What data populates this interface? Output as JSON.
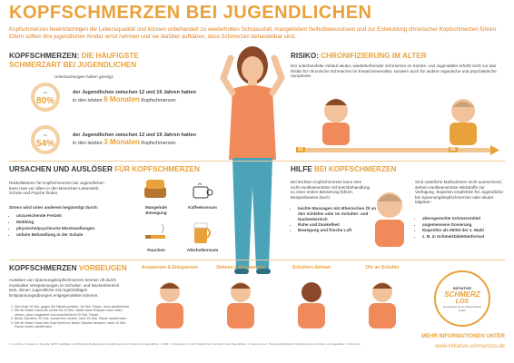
{
  "header": {
    "title": "KOPFSCHMERZEN BEI JUGENDLICHEN",
    "intro": "Kopfschmerzen beeinträchtigen die Lebensqualität und können unbehandelt zu wiederholten Schulausfall, mangelndem Selbstbewusstsein und zur Entwicklung chronischer Kopfschmerzen führen. Eltern sollten ihre jugendlichen Kinder ernst nehmen und sie darüber aufklären, dass Schmerzen behandelbar sind."
  },
  "frequent": {
    "title_a": "KOPFSCHMERZEN: ",
    "title_b": "DIE HÄUFIGSTE SCHMERZART BEI JUGENDLICHEN",
    "note": "Untersuchungen haben gezeigt:",
    "stat1": {
      "pct": "80%",
      "unit": "ca.",
      "text_a": "der Jugendlichen zwischen 12 und 19 Jahren hatten",
      "text_b": "in den letzten",
      "highlight": "6 Monaten",
      "text_c": "Kopfschmerzen"
    },
    "stat2": {
      "pct": "54%",
      "unit": "ca.",
      "text_a": "der Jugendlichen zwischen 12 und 19 Jahren hatten",
      "text_b": "in den letzten",
      "highlight": "3 Monaten",
      "text_c": "Kopfschmerzen"
    }
  },
  "risk": {
    "title_a": "RISIKO: ",
    "title_b": "CHRONIFIZIERUNG IM ALTER",
    "text": "Der unbehandelte Verlauf akuter, wiederkehrender Schmerzen im Kindes- und Jugendalter erhöht nicht nur das Risiko für chronische Schmerzen im Erwachsenenalter, sondern auch für andere organische und psychiatrische Symptome.",
    "timeline_start": "13",
    "timeline_end": "50"
  },
  "causes": {
    "title_a": "URSACHEN UND AUSLÖSER ",
    "title_b": "FÜR KOPFSCHMERZEN",
    "text1": "Risikofaktoren für Kopfschmerzen bei Jugendlichen kann man vor allem in den Bereichen Lebensstil, Schule und Psyche finden.",
    "text2": "Stress wird unter anderem begünstigt durch:",
    "items": [
      "unzureichende Freizeit",
      "Mobbing",
      "physische/psychische Misshandlungen",
      "unfaire Behandlung in der Schule"
    ],
    "icons": [
      "Mangelnde Bewegung",
      "Kaffeekonsum",
      "Rauchen",
      "Alkoholkonsum"
    ]
  },
  "help": {
    "title_a": "HILFE ",
    "title_b": "BEI KOPFSCHMERZEN",
    "text1": "Bei leichten Kopfschmerzen kann eine nicht-medikamentöse Schmerzbehandlung zu einer ersten Besserung führen. Beispielsweise durch:",
    "items": [
      "leichte Massagen mit ätherischen Öl an den Schläfen oder im Schulter- und Nackenbereich",
      "Ruhe und Dunkelheit",
      "Bewegung und frische Luft"
    ],
    "text2": "Sind natürliche Maßnahmen nicht ausreichend, stehen medikamentöse Wirkstoffe zur Verfügung. Experten empfehlen für Jugendliche bei Spannungskopfschmerzen oder akuter Migräne:",
    "items2": [
      "altersgerechte Schmerzmittel",
      "angemessene Dosierung",
      "Ibuprofen als Mittel der 1. Wahl",
      "z. B. in Schmelztablettenformat"
    ],
    "sup": "2"
  },
  "prevent": {
    "title_a": "KOPFSCHMERZEN ",
    "title_b": "VORBEUGEN",
    "text": "Ausüben von Spannungskopfschmerzen können oft durch muskuläre Verspannungen im Schulter- und Nackenbereich sein, denen Jugendliche mit regelmäßigen Entspannungsübungen entgegenwirken können.",
    "steps": [
      "Den Kopf 15 Sek. gegen die Hände pressen, 15 Sek. Pause, dann wiederholen",
      "Mit der linken Hand die rechte für 15 Sek. halten dann Rollsam nach unten ziehen, dann umgekehrt und anschließend 15 Sek. Pause",
      "Beide Schultern 15 Sek. zusammen ziehen, nach 15 Sek. Pause wiederholen",
      "Mit der linken Hand den Kopf leicht zur linken Schulter drücken, nach 15 Sek. Pause rechts wiederholen"
    ],
    "exercises": [
      "Anspannen & Entspannen",
      "Dehnen & Entspannen",
      "Schultern dehnen",
      "Ohr an Schulter"
    ]
  },
  "footer": {
    "refs": "1. vom Kries, F. Heinen, E. Aksoylar, (2020): Häufigkeit und Schulische Bedeutung von Kopfschmerzen bei Kindern und Jugendlichen. 2. Wild, C. Freuhausen, N. Hoff: Kopfschmerz bei Kindern und Jugendlichen. 3. Kaemmer et al. Therapie idiopathischer Kopfschmerzen im Kindes- und Jugendalter. 4. Klein et al.",
    "more_info": "MEHR INFORMATIONEN UNTER",
    "url": "www.initiative-schmerzlos.de",
    "logo_a": "INITIATIVE",
    "logo_b": "SCHMERZ",
    "logo_c": "LOS",
    "logo_d": "Gemeinsam für ein schmerzfreies Leben"
  },
  "colors": {
    "accent": "#e9a13b",
    "intro": "#e07f22",
    "text": "#3a3a3a"
  }
}
